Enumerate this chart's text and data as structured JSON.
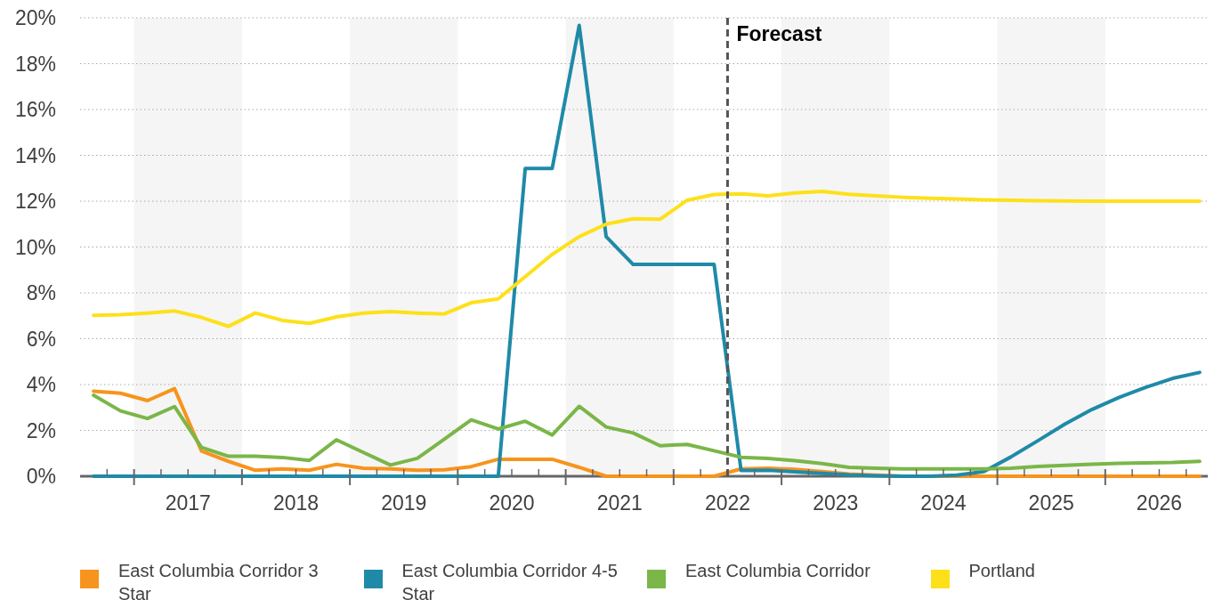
{
  "chart_data": {
    "type": "line",
    "x": [
      2016.625,
      2016.875,
      2017.125,
      2017.375,
      2017.625,
      2017.875,
      2018.125,
      2018.375,
      2018.625,
      2018.875,
      2019.125,
      2019.375,
      2019.625,
      2019.875,
      2020.125,
      2020.375,
      2020.625,
      2020.875,
      2021.125,
      2021.375,
      2021.625,
      2021.875,
      2022.125,
      2022.375,
      2022.625,
      2022.875,
      2023.125,
      2023.375,
      2023.625,
      2023.875,
      2024.125,
      2024.375,
      2024.625,
      2024.875,
      2025.125,
      2025.375,
      2025.625,
      2025.875,
      2026.125,
      2026.375,
      2026.625,
      2026.875
    ],
    "series": [
      {
        "name": "East Columbia Corridor 3 Star",
        "color": "#f7941d",
        "values": [
          3.71,
          3.62,
          3.3,
          3.82,
          1.1,
          0.65,
          0.26,
          0.32,
          0.26,
          0.52,
          0.35,
          0.32,
          0.26,
          0.28,
          0.42,
          0.74,
          0.74,
          0.74,
          0.39,
          0,
          0,
          0,
          0,
          0,
          0.32,
          0.35,
          0.3,
          0.2,
          0.1,
          0.05,
          0,
          0,
          0,
          0,
          0,
          0,
          0,
          0,
          0,
          0,
          0,
          0
        ]
      },
      {
        "name": "East Columbia Corridor 4-5 Star",
        "color": "#1f8aa8",
        "values": [
          0,
          0,
          0,
          0,
          0,
          0,
          0,
          0,
          0,
          0,
          0,
          0,
          0,
          0,
          0,
          0,
          13.43,
          13.43,
          19.67,
          10.45,
          9.24,
          9.24,
          9.24,
          9.24,
          0.25,
          0.26,
          0.19,
          0.13,
          0.06,
          0.02,
          0,
          0,
          0.05,
          0.2,
          0.84,
          1.55,
          2.27,
          2.91,
          3.43,
          3.88,
          4.27,
          4.53
        ]
      },
      {
        "name": "East Columbia Corridor",
        "color": "#7ab648",
        "values": [
          3.53,
          2.85,
          2.52,
          3.04,
          1.26,
          0.87,
          0.87,
          0.82,
          0.69,
          1.59,
          1.04,
          0.49,
          0.78,
          1.62,
          2.46,
          2.06,
          2.4,
          1.8,
          3.05,
          2.15,
          1.89,
          1.33,
          1.39,
          1.11,
          0.83,
          0.78,
          0.68,
          0.55,
          0.39,
          0.35,
          0.32,
          0.32,
          0.32,
          0.32,
          0.35,
          0.43,
          0.48,
          0.52,
          0.56,
          0.58,
          0.6,
          0.65
        ]
      },
      {
        "name": "Portland",
        "color": "#fde01a",
        "values": [
          7.02,
          7.05,
          7.12,
          7.21,
          6.93,
          6.54,
          7.12,
          6.8,
          6.67,
          6.95,
          7.12,
          7.18,
          7.12,
          7.08,
          7.57,
          7.74,
          8.71,
          9.68,
          10.45,
          11.0,
          11.23,
          11.21,
          12.04,
          12.29,
          12.32,
          12.23,
          12.36,
          12.43,
          12.3,
          12.23,
          12.17,
          12.13,
          12.1,
          12.06,
          12.04,
          12.02,
          12.01,
          12.0,
          12.0,
          12.0,
          12.0,
          12.0
        ]
      }
    ],
    "xlim": [
      2016.5,
      2026.95
    ],
    "xticks": [
      {
        "value": 2016.75,
        "label": null
      },
      {
        "value": 2017,
        "label": null
      },
      {
        "value": 2017.25,
        "label": null
      },
      {
        "value": 2017.5,
        "label": "2017"
      },
      {
        "value": 2017.75,
        "label": null
      },
      {
        "value": 2018,
        "label": null
      },
      {
        "value": 2018.25,
        "label": null
      },
      {
        "value": 2018.5,
        "label": "2018"
      },
      {
        "value": 2018.75,
        "label": null
      },
      {
        "value": 2019,
        "label": null
      },
      {
        "value": 2019.25,
        "label": null
      },
      {
        "value": 2019.5,
        "label": "2019"
      },
      {
        "value": 2019.75,
        "label": null
      },
      {
        "value": 2020,
        "label": null
      },
      {
        "value": 2020.25,
        "label": null
      },
      {
        "value": 2020.5,
        "label": "2020"
      },
      {
        "value": 2020.75,
        "label": null
      },
      {
        "value": 2021,
        "label": null
      },
      {
        "value": 2021.25,
        "label": null
      },
      {
        "value": 2021.5,
        "label": "2021"
      },
      {
        "value": 2021.75,
        "label": null
      },
      {
        "value": 2022,
        "label": null
      },
      {
        "value": 2022.25,
        "label": null
      },
      {
        "value": 2022.5,
        "label": "2022"
      },
      {
        "value": 2022.75,
        "label": null
      },
      {
        "value": 2023,
        "label": null
      },
      {
        "value": 2023.25,
        "label": null
      },
      {
        "value": 2023.5,
        "label": "2023"
      },
      {
        "value": 2023.75,
        "label": null
      },
      {
        "value": 2024,
        "label": null
      },
      {
        "value": 2024.25,
        "label": null
      },
      {
        "value": 2024.5,
        "label": "2024"
      },
      {
        "value": 2024.75,
        "label": null
      },
      {
        "value": 2025,
        "label": null
      },
      {
        "value": 2025.25,
        "label": null
      },
      {
        "value": 2025.5,
        "label": "2025"
      },
      {
        "value": 2025.75,
        "label": null
      },
      {
        "value": 2026,
        "label": null
      },
      {
        "value": 2026.25,
        "label": null
      },
      {
        "value": 2026.5,
        "label": "2026"
      },
      {
        "value": 2026.75,
        "label": null
      }
    ],
    "ylim": [
      0,
      20
    ],
    "yticks": [
      {
        "value": 0,
        "label": "0%"
      },
      {
        "value": 2,
        "label": "2%"
      },
      {
        "value": 4,
        "label": "4%"
      },
      {
        "value": 6,
        "label": "6%"
      },
      {
        "value": 8,
        "label": "8%"
      },
      {
        "value": 10,
        "label": "10%"
      },
      {
        "value": 12,
        "label": "12%"
      },
      {
        "value": 14,
        "label": "14%"
      },
      {
        "value": 16,
        "label": "16%"
      },
      {
        "value": 18,
        "label": "18%"
      },
      {
        "value": 20,
        "label": "20%"
      }
    ],
    "bands": [
      {
        "axis": "x",
        "from": 2017,
        "to": 2018,
        "color": "#f5f5f5"
      },
      {
        "axis": "x",
        "from": 2019,
        "to": 2020,
        "color": "#f5f5f5"
      },
      {
        "axis": "x",
        "from": 2021,
        "to": 2022,
        "color": "#f5f5f5"
      },
      {
        "axis": "x",
        "from": 2023,
        "to": 2024,
        "color": "#f5f5f5"
      },
      {
        "axis": "x",
        "from": 2025,
        "to": 2026,
        "color": "#f5f5f5"
      }
    ],
    "ref_lines": [
      {
        "axis": "x",
        "value": 2022.5,
        "label": "Forecast",
        "color": "#555555",
        "line_style": "dashed"
      }
    ],
    "grid": "y",
    "legend": "bottom",
    "marker": "none",
    "line_style": "solid"
  }
}
